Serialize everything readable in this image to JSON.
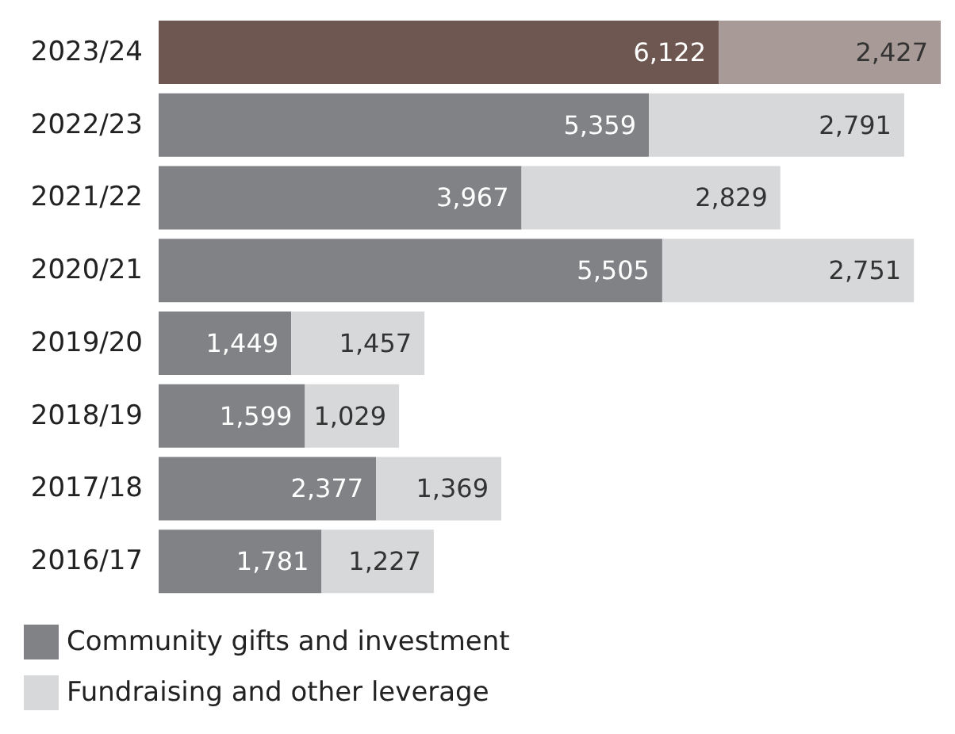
{
  "chart_data": {
    "type": "bar",
    "orientation": "horizontal",
    "stacked": true,
    "categories": [
      "2023/24",
      "2022/23",
      "2021/22",
      "2020/21",
      "2019/20",
      "2018/19",
      "2017/18",
      "2016/17"
    ],
    "series": [
      {
        "name": "Community gifts and investment",
        "color": "#808285",
        "colors": [
          "#6e5750",
          "#808285",
          "#808285",
          "#808285",
          "#808285",
          "#808285",
          "#808285",
          "#808285"
        ],
        "values": [
          6122,
          5359,
          3967,
          5505,
          1449,
          1599,
          2377,
          1781
        ],
        "value_labels": [
          "6,122",
          "5,359",
          "3,967",
          "5,505",
          "1,449",
          "1,599",
          "2,377",
          "1,781"
        ]
      },
      {
        "name": "Fundraising and other leverage",
        "color": "#d7d8da",
        "colors": [
          "#a89a96",
          "#d7d8da",
          "#d7d8da",
          "#d7d8da",
          "#d7d8da",
          "#d7d8da",
          "#d7d8da",
          "#d7d8da"
        ],
        "values": [
          2427,
          2791,
          2829,
          2751,
          1457,
          1029,
          1369,
          1227
        ],
        "value_labels": [
          "2,427",
          "2,791",
          "2,829",
          "2,751",
          "1,457",
          "1,029",
          "1,369",
          "1,227"
        ]
      }
    ],
    "legend": "bottom left",
    "tick_labels": "y"
  }
}
